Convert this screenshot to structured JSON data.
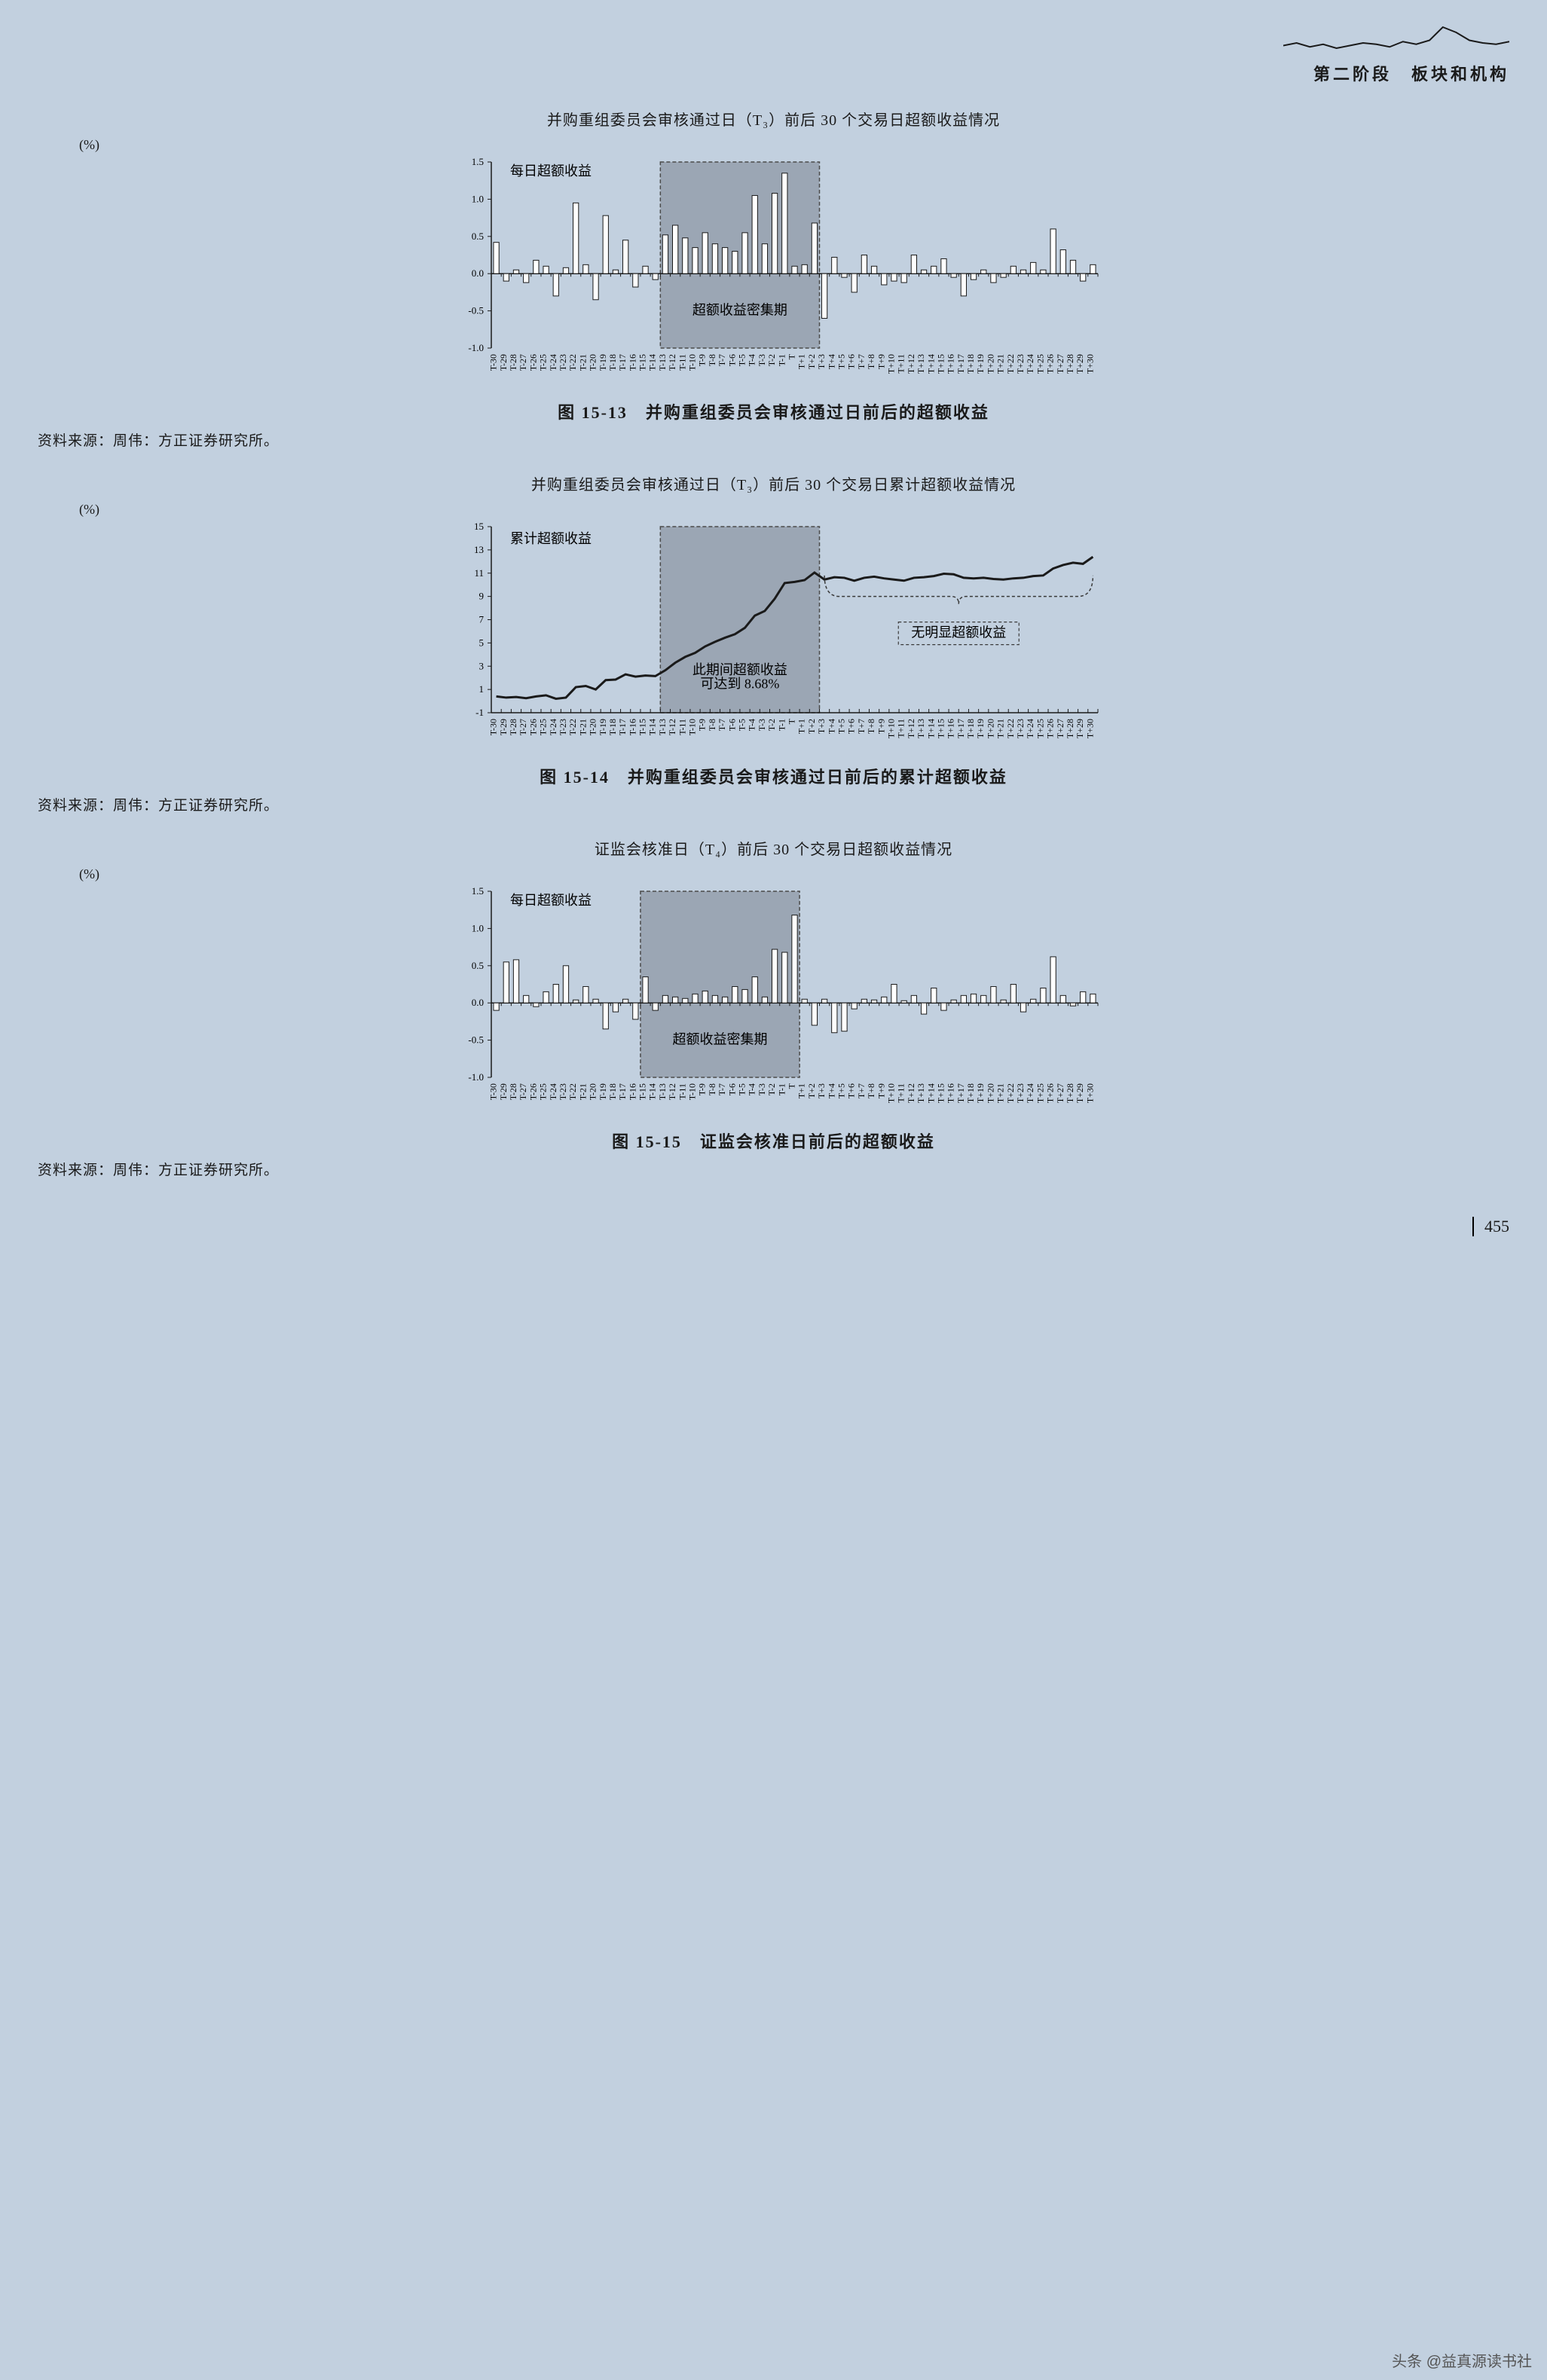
{
  "header": {
    "phase": "第二阶段",
    "section": "板块和机构",
    "sparkline": [
      8,
      10,
      7,
      9,
      6,
      8,
      10,
      9,
      7,
      11,
      9,
      12,
      22,
      18,
      12,
      10,
      9,
      11
    ]
  },
  "pageNumber": "455",
  "watermark": "头条 @益真源读书社",
  "xLabels": [
    "T-30",
    "T-29",
    "T-28",
    "T-27",
    "T-26",
    "T-25",
    "T-24",
    "T-23",
    "T-22",
    "T-21",
    "T-20",
    "T-19",
    "T-18",
    "T-17",
    "T-16",
    "T-15",
    "T-14",
    "T-13",
    "T-12",
    "T-11",
    "T-10",
    "T-9",
    "T-8",
    "T-7",
    "T-6",
    "T-5",
    "T-4",
    "T-3",
    "T-2",
    "T-1",
    "T",
    "T+1",
    "T+2",
    "T+3",
    "T+4",
    "T+5",
    "T+6",
    "T+7",
    "T+8",
    "T+9",
    "T+10",
    "T+11",
    "T+12",
    "T+13",
    "T+14",
    "T+15",
    "T+16",
    "T+17",
    "T+18",
    "T+19",
    "T+20",
    "T+21",
    "T+22",
    "T+23",
    "T+24",
    "T+25",
    "T+26",
    "T+27",
    "T+28",
    "T+29",
    "T+30"
  ],
  "colors": {
    "bg": "#c2d0df",
    "axis": "#1a1a1a",
    "bar": "#ffffff",
    "barStroke": "#1a1a1a",
    "highlight": "#808b97",
    "highlightBorder": "#4a4a4a",
    "line": "#1a1a1a",
    "dash": "#3a3a3a"
  },
  "chart1": {
    "title": "并购重组委员会审核通过日（T₃）前后 30 个交易日超额收益情况",
    "yUnit": "(%)",
    "seriesLabel": "每日超额收益",
    "yMin": -1.0,
    "yMax": 1.5,
    "yStep": 0.5,
    "bars": [
      0.42,
      -0.1,
      0.05,
      -0.12,
      0.18,
      0.1,
      -0.3,
      0.08,
      0.95,
      0.12,
      -0.35,
      0.78,
      0.05,
      0.45,
      -0.18,
      0.1,
      -0.08,
      0.52,
      0.65,
      0.48,
      0.35,
      0.55,
      0.4,
      0.35,
      0.3,
      0.55,
      1.05,
      0.4,
      1.08,
      1.35,
      0.1,
      0.12,
      0.68,
      -0.6,
      0.22,
      -0.05,
      -0.25,
      0.25,
      0.1,
      -0.15,
      -0.1,
      -0.12,
      0.25,
      0.05,
      0.1,
      0.2,
      -0.05,
      -0.3,
      -0.08,
      0.05,
      -0.12,
      -0.05,
      0.1,
      0.05,
      0.15,
      0.05,
      0.6,
      0.32,
      0.18,
      -0.1,
      0.12
    ],
    "highlightStart": 17,
    "highlightEnd": 32,
    "annotation": "超额收益密集期",
    "caption": "图 15-13　并购重组委员会审核通过日前后的超额收益",
    "source": "资料来源：周伟：方正证券研究所。"
  },
  "chart2": {
    "title": "并购重组委员会审核通过日（T₃）前后 30 个交易日累计超额收益情况",
    "yUnit": "(%)",
    "seriesLabel": "累计超额收益",
    "yMin": -1,
    "yMax": 15,
    "yTicks": [
      -1,
      1,
      3,
      5,
      7,
      9,
      11,
      13,
      15
    ],
    "line": [
      0.4,
      0.3,
      0.35,
      0.25,
      0.4,
      0.5,
      0.2,
      0.3,
      1.2,
      1.3,
      1.0,
      1.8,
      1.85,
      2.3,
      2.1,
      2.2,
      2.15,
      2.65,
      3.3,
      3.8,
      4.15,
      4.7,
      5.1,
      5.45,
      5.75,
      6.3,
      7.35,
      7.75,
      8.8,
      10.15,
      10.25,
      10.4,
      11.05,
      10.45,
      10.65,
      10.6,
      10.35,
      10.6,
      10.7,
      10.55,
      10.45,
      10.35,
      10.6,
      10.65,
      10.75,
      10.95,
      10.9,
      10.6,
      10.55,
      10.6,
      10.5,
      10.45,
      10.55,
      10.6,
      10.75,
      10.8,
      11.4,
      11.7,
      11.9,
      11.8,
      12.4
    ],
    "highlightStart": 17,
    "highlightEnd": 32,
    "annotation1_a": "此期间超额收益",
    "annotation1_b": "可达到 8.68%",
    "annotation2": "无明显超额收益",
    "caption": "图 15-14　并购重组委员会审核通过日前后的累计超额收益",
    "source": "资料来源：周伟：方正证券研究所。"
  },
  "chart3": {
    "title": "证监会核准日（T₄）前后 30 个交易日超额收益情况",
    "yUnit": "(%)",
    "seriesLabel": "每日超额收益",
    "yMin": -1.0,
    "yMax": 1.5,
    "yStep": 0.5,
    "bars": [
      -0.1,
      0.55,
      0.58,
      0.1,
      -0.05,
      0.15,
      0.25,
      0.5,
      0.04,
      0.22,
      0.05,
      -0.35,
      -0.12,
      0.05,
      -0.22,
      0.35,
      -0.1,
      0.1,
      0.08,
      0.06,
      0.12,
      0.16,
      0.1,
      0.08,
      0.22,
      0.18,
      0.35,
      0.08,
      0.72,
      0.68,
      1.18,
      0.05,
      -0.3,
      0.05,
      -0.4,
      -0.38,
      -0.08,
      0.05,
      0.04,
      0.08,
      0.25,
      0.03,
      0.1,
      -0.15,
      0.2,
      -0.1,
      0.04,
      0.1,
      0.12,
      0.1,
      0.22,
      0.04,
      0.25,
      -0.12,
      0.05,
      0.2,
      0.62,
      0.1,
      -0.04,
      0.15,
      0.12
    ],
    "highlightStart": 15,
    "highlightEnd": 30,
    "annotation": "超额收益密集期",
    "caption": "图 15-15　证监会核准日前后的超额收益",
    "source": "资料来源：周伟：方正证券研究所。"
  }
}
